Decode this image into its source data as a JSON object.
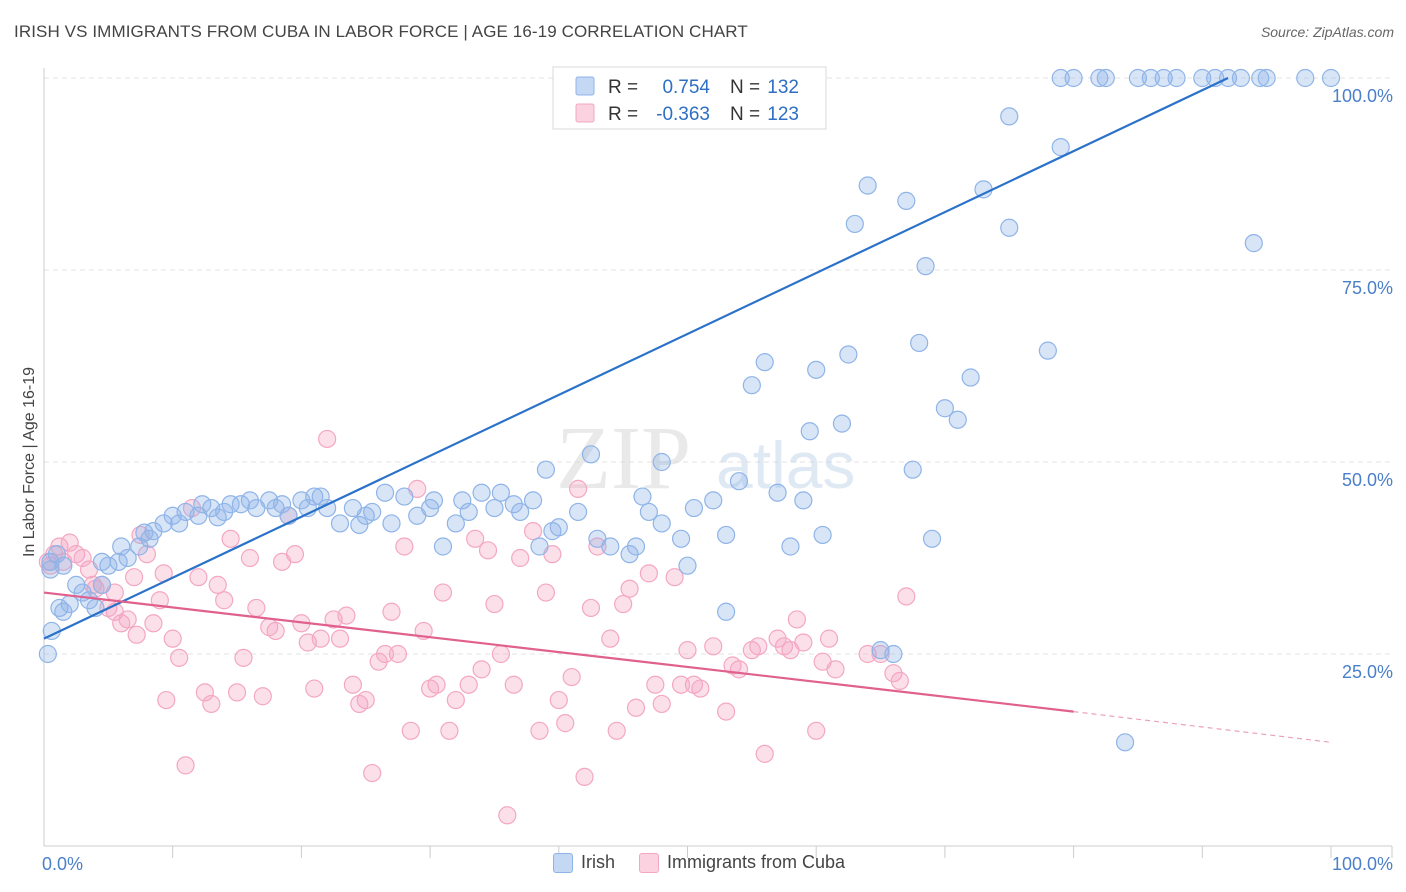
{
  "title": "IRISH VS IMMIGRANTS FROM CUBA IN LABOR FORCE | AGE 16-19 CORRELATION CHART",
  "source": "Source: ZipAtlas.com",
  "watermark": {
    "zip": "ZIP",
    "atlas": "atlas"
  },
  "chart_data": {
    "type": "scatter",
    "ylabel": "In Labor Force | Age 16-19",
    "xlabel": "",
    "xlim": [
      0,
      100
    ],
    "ylim": [
      0,
      100
    ],
    "x_tick_labels": {
      "left": "0.0%",
      "right": "100.0%"
    },
    "y_tick_labels": [
      {
        "value": 25,
        "label": "25.0%"
      },
      {
        "value": 50,
        "label": "50.0%"
      },
      {
        "value": 75,
        "label": "75.0%"
      },
      {
        "value": 100,
        "label": "100.0%"
      }
    ],
    "grid": true,
    "legend_position": "top-center",
    "series": [
      {
        "name": "Irish",
        "color": "#8fb4e8",
        "line_color": "#2a72c9",
        "R": "0.754",
        "N": "132",
        "R_label": "R =",
        "N_label": "N =",
        "trend": {
          "x": [
            0,
            92
          ],
          "y": [
            27,
            100
          ]
        },
        "points": [
          [
            0.3,
            25
          ],
          [
            0.6,
            28
          ],
          [
            1.2,
            31
          ],
          [
            1.5,
            30.5
          ],
          [
            2,
            31.5
          ],
          [
            2.5,
            34
          ],
          [
            3,
            33
          ],
          [
            3.5,
            32
          ],
          [
            4,
            31
          ],
          [
            4.5,
            34
          ],
          [
            4.5,
            37
          ],
          [
            5,
            36.5
          ],
          [
            5.8,
            37
          ],
          [
            6,
            39
          ],
          [
            6.5,
            37.5
          ],
          [
            7.4,
            39
          ],
          [
            7.8,
            40.8
          ],
          [
            8.2,
            40
          ],
          [
            8.5,
            41
          ],
          [
            9.3,
            42
          ],
          [
            10,
            43
          ],
          [
            10.5,
            42
          ],
          [
            11,
            43.5
          ],
          [
            12,
            43
          ],
          [
            12.3,
            44.5
          ],
          [
            13,
            44
          ],
          [
            13.5,
            42.8
          ],
          [
            14,
            43.5
          ],
          [
            14.5,
            44.5
          ],
          [
            15.3,
            44.5
          ],
          [
            16,
            45
          ],
          [
            16.5,
            44
          ],
          [
            17.5,
            45
          ],
          [
            18,
            44
          ],
          [
            18.5,
            44.5
          ],
          [
            19,
            43
          ],
          [
            20,
            45
          ],
          [
            20.5,
            44
          ],
          [
            21,
            45.5
          ],
          [
            21.5,
            45.5
          ],
          [
            22,
            44
          ],
          [
            23,
            42
          ],
          [
            24,
            44
          ],
          [
            24.5,
            41.8
          ],
          [
            25,
            43
          ],
          [
            25.5,
            43.5
          ],
          [
            26.5,
            46
          ],
          [
            27,
            42
          ],
          [
            28,
            45.5
          ],
          [
            29,
            43
          ],
          [
            30,
            44
          ],
          [
            30.3,
            45
          ],
          [
            31,
            39
          ],
          [
            32,
            42
          ],
          [
            32.5,
            45
          ],
          [
            33,
            43.5
          ],
          [
            34,
            46
          ],
          [
            35,
            44
          ],
          [
            35.5,
            46
          ],
          [
            36.5,
            44.5
          ],
          [
            37,
            43.5
          ],
          [
            38,
            45
          ],
          [
            38.5,
            39
          ],
          [
            39,
            49
          ],
          [
            39.5,
            41
          ],
          [
            40,
            41.5
          ],
          [
            41.5,
            43.5
          ],
          [
            42.5,
            51
          ],
          [
            43,
            40
          ],
          [
            44,
            39
          ],
          [
            45.5,
            38
          ],
          [
            46,
            39
          ],
          [
            46.5,
            45.5
          ],
          [
            47,
            43.5
          ],
          [
            48,
            42
          ],
          [
            48,
            50
          ],
          [
            49.5,
            40
          ],
          [
            50,
            36.5
          ],
          [
            50.5,
            44
          ],
          [
            52,
            45
          ],
          [
            53,
            40.5
          ],
          [
            53,
            30.5
          ],
          [
            54,
            47.5
          ],
          [
            55,
            60
          ],
          [
            56,
            63
          ],
          [
            57,
            46
          ],
          [
            58,
            39
          ],
          [
            59,
            45
          ],
          [
            59.5,
            54
          ],
          [
            60,
            62
          ],
          [
            60.5,
            40.5
          ],
          [
            62,
            55
          ],
          [
            62.5,
            64
          ],
          [
            63,
            81
          ],
          [
            64,
            86
          ],
          [
            65,
            25.5
          ],
          [
            66,
            25
          ],
          [
            67,
            84
          ],
          [
            67.5,
            49
          ],
          [
            68,
            65.5
          ],
          [
            68.5,
            75.5
          ],
          [
            69,
            40
          ],
          [
            70,
            57
          ],
          [
            71,
            55.5
          ],
          [
            72,
            61
          ],
          [
            73,
            85.5
          ],
          [
            75,
            80.5
          ],
          [
            75,
            95
          ],
          [
            78,
            64.5
          ],
          [
            79,
            91
          ],
          [
            79,
            100
          ],
          [
            80,
            100
          ],
          [
            82,
            100
          ],
          [
            82.5,
            100
          ],
          [
            84,
            13.5
          ],
          [
            85,
            100
          ],
          [
            86,
            100
          ],
          [
            87,
            100
          ],
          [
            88,
            100
          ],
          [
            90,
            100
          ],
          [
            91,
            100
          ],
          [
            92,
            100
          ],
          [
            93,
            100
          ],
          [
            94,
            78.5
          ],
          [
            94.5,
            100
          ],
          [
            95,
            100
          ],
          [
            98,
            100
          ],
          [
            100,
            100
          ],
          [
            0.5,
            37
          ],
          [
            1,
            38
          ],
          [
            0.5,
            36
          ],
          [
            1.5,
            36.5
          ]
        ]
      },
      {
        "name": "Immigrants from Cuba",
        "color": "#f4a7c2",
        "line_color": "#e0608e",
        "R": "-0.363",
        "N": "123",
        "R_label": "R =",
        "N_label": "N =",
        "trend": {
          "x": [
            0,
            80
          ],
          "y": [
            33,
            17.5
          ]
        },
        "trend_dashed": {
          "x": [
            80,
            100
          ],
          "y": [
            17.5,
            13.5
          ]
        },
        "points": [
          [
            0.3,
            37
          ],
          [
            0.5,
            36.5
          ],
          [
            0.8,
            38
          ],
          [
            1.2,
            39
          ],
          [
            1.5,
            37
          ],
          [
            2,
            39.5
          ],
          [
            2.5,
            38
          ],
          [
            3,
            37.5
          ],
          [
            3.5,
            36
          ],
          [
            3.8,
            34
          ],
          [
            4,
            33.5
          ],
          [
            4.5,
            34
          ],
          [
            5,
            31
          ],
          [
            5.5,
            30.5
          ],
          [
            5.5,
            33
          ],
          [
            6,
            29
          ],
          [
            6.5,
            29.5
          ],
          [
            7,
            35
          ],
          [
            7.2,
            27.5
          ],
          [
            7.5,
            40.5
          ],
          [
            8,
            38
          ],
          [
            8.5,
            29
          ],
          [
            9,
            32
          ],
          [
            9.3,
            35.5
          ],
          [
            9.5,
            19
          ],
          [
            10,
            27
          ],
          [
            10.5,
            24.5
          ],
          [
            11,
            10.5
          ],
          [
            11.5,
            44
          ],
          [
            12,
            35
          ],
          [
            12.5,
            20
          ],
          [
            13,
            18.5
          ],
          [
            13.5,
            34
          ],
          [
            14,
            32
          ],
          [
            14.5,
            40
          ],
          [
            15,
            20
          ],
          [
            15.5,
            24.5
          ],
          [
            16,
            37.5
          ],
          [
            16.5,
            31
          ],
          [
            17,
            19.5
          ],
          [
            17.5,
            28.5
          ],
          [
            18,
            28
          ],
          [
            18.5,
            37
          ],
          [
            19,
            43
          ],
          [
            19.5,
            38
          ],
          [
            20,
            29
          ],
          [
            20.5,
            26.5
          ],
          [
            21,
            20.5
          ],
          [
            21.5,
            27
          ],
          [
            22,
            53
          ],
          [
            22.5,
            29.5
          ],
          [
            23,
            27
          ],
          [
            23.5,
            30
          ],
          [
            24,
            21
          ],
          [
            24.5,
            18.5
          ],
          [
            25,
            19
          ],
          [
            25.5,
            9.5
          ],
          [
            26,
            24
          ],
          [
            26.5,
            25
          ],
          [
            27,
            30.5
          ],
          [
            27.5,
            25
          ],
          [
            28,
            39
          ],
          [
            28.5,
            15
          ],
          [
            29,
            46.5
          ],
          [
            29.5,
            28
          ],
          [
            30,
            20.5
          ],
          [
            30.5,
            21
          ],
          [
            31,
            33
          ],
          [
            31.5,
            15
          ],
          [
            32,
            19
          ],
          [
            33,
            21
          ],
          [
            33.5,
            40
          ],
          [
            34,
            23
          ],
          [
            34.5,
            38.5
          ],
          [
            35,
            31.5
          ],
          [
            35.5,
            25
          ],
          [
            36,
            4
          ],
          [
            36.5,
            21
          ],
          [
            37,
            37.5
          ],
          [
            38,
            41
          ],
          [
            38.5,
            15
          ],
          [
            39,
            33
          ],
          [
            39.5,
            38
          ],
          [
            40,
            19
          ],
          [
            40.5,
            16
          ],
          [
            41,
            22
          ],
          [
            41.5,
            46.5
          ],
          [
            42,
            9
          ],
          [
            42.5,
            31
          ],
          [
            43,
            39
          ],
          [
            44,
            27
          ],
          [
            44.5,
            15
          ],
          [
            45,
            31.5
          ],
          [
            45.5,
            33.5
          ],
          [
            46,
            18
          ],
          [
            47,
            35.5
          ],
          [
            47.5,
            21
          ],
          [
            48,
            18.5
          ],
          [
            49,
            35
          ],
          [
            49.5,
            21
          ],
          [
            50,
            25.5
          ],
          [
            50.5,
            21
          ],
          [
            51,
            20.5
          ],
          [
            52,
            26
          ],
          [
            53,
            17.5
          ],
          [
            53.5,
            23.5
          ],
          [
            54,
            23
          ],
          [
            55,
            25.5
          ],
          [
            55.5,
            26
          ],
          [
            56,
            12
          ],
          [
            57,
            27
          ],
          [
            57.5,
            26
          ],
          [
            58,
            25.5
          ],
          [
            58.5,
            29.5
          ],
          [
            59,
            26.5
          ],
          [
            60,
            15
          ],
          [
            60.5,
            24
          ],
          [
            61,
            27
          ],
          [
            61.5,
            23
          ],
          [
            64,
            25
          ],
          [
            65,
            25
          ],
          [
            66,
            22.5
          ],
          [
            66.5,
            21.5
          ],
          [
            67,
            32.5
          ]
        ]
      }
    ]
  }
}
